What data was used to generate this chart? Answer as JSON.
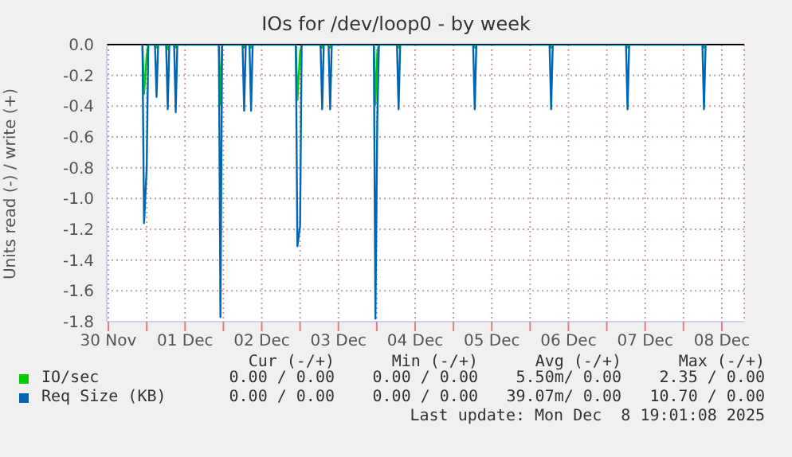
{
  "chart_data": {
    "type": "line",
    "title": "IOs for /dev/loop0 - by week",
    "ylabel": "Units read (-) / write (+)",
    "x": [
      "2025-11-30T22:40",
      "2025-11-30T23:10",
      "2025-12-01T00:00",
      "2025-12-01T00:30",
      "2025-12-01T02:35",
      "2025-12-01T03:05",
      "2025-12-01T03:35",
      "2025-12-01T06:05",
      "2025-12-01T06:35",
      "2025-12-01T07:05",
      "2025-12-01T08:35",
      "2025-12-01T09:05",
      "2025-12-01T09:35",
      "2025-12-01T22:35",
      "2025-12-01T23:05",
      "2025-12-01T23:35",
      "2025-12-02T06:00",
      "2025-12-02T06:30",
      "2025-12-02T07:00",
      "2025-12-02T08:10",
      "2025-12-02T08:40",
      "2025-12-02T09:10",
      "2025-12-02T22:40",
      "2025-12-02T23:10",
      "2025-12-03T00:00",
      "2025-12-03T00:30",
      "2025-12-03T06:25",
      "2025-12-03T06:55",
      "2025-12-03T07:25",
      "2025-12-03T08:55",
      "2025-12-03T09:25",
      "2025-12-03T09:55",
      "2025-12-03T23:05",
      "2025-12-03T23:35",
      "2025-12-04T00:10",
      "2025-12-04T00:40",
      "2025-12-04T06:20",
      "2025-12-04T06:50",
      "2025-12-04T07:20",
      "2025-12-05T06:10",
      "2025-12-05T06:40",
      "2025-12-05T07:10",
      "2025-12-06T06:05",
      "2025-12-06T06:35",
      "2025-12-06T07:05",
      "2025-12-07T06:00",
      "2025-12-07T06:30",
      "2025-12-07T07:00",
      "2025-12-08T05:55",
      "2025-12-08T06:25",
      "2025-12-08T06:55"
    ],
    "series": [
      {
        "name": "IO/sec",
        "color": "#00cc00",
        "values": [
          0,
          -0.32,
          -0.07,
          0,
          0,
          -0.02,
          0,
          0,
          -0.03,
          0,
          0,
          -0.02,
          0,
          0,
          -0.39,
          0,
          0,
          -0.02,
          0,
          0,
          -0.02,
          0,
          0,
          -0.36,
          -0.05,
          0,
          0,
          -0.02,
          0,
          0,
          -0.02,
          0,
          0,
          -0.39,
          -0.05,
          0,
          0,
          -0.02,
          0,
          0,
          -0.02,
          0,
          0,
          -0.02,
          0,
          0,
          -0.02,
          0,
          0,
          -0.02,
          0
        ]
      },
      {
        "name": "Req Size (KB)",
        "color": "#0066b3",
        "values": [
          0,
          -1.16,
          -0.8,
          0,
          0,
          -0.34,
          0,
          0,
          -0.42,
          0,
          0,
          -0.44,
          0,
          0,
          -1.77,
          0,
          0,
          -0.43,
          0,
          0,
          -0.43,
          0,
          0,
          -1.31,
          -1.18,
          0,
          0,
          -0.42,
          0,
          0,
          -0.42,
          0,
          0,
          -1.78,
          -0.5,
          0,
          0,
          -0.42,
          0,
          0,
          -0.42,
          0,
          0,
          -0.42,
          0,
          0,
          -0.42,
          0,
          0,
          -0.42,
          0
        ]
      }
    ],
    "xlim": [
      "2025-11-30T11:30",
      "2025-12-08T19:00"
    ],
    "xticks": [
      {
        "value": "2025-11-30T12:00",
        "label": "30 Nov"
      },
      {
        "value": "2025-12-01T00:00",
        "label": null
      },
      {
        "value": "2025-12-01T12:00",
        "label": "01 Dec"
      },
      {
        "value": "2025-12-02T00:00",
        "label": null
      },
      {
        "value": "2025-12-02T12:00",
        "label": "02 Dec"
      },
      {
        "value": "2025-12-03T00:00",
        "label": null
      },
      {
        "value": "2025-12-03T12:00",
        "label": "03 Dec"
      },
      {
        "value": "2025-12-04T00:00",
        "label": null
      },
      {
        "value": "2025-12-04T12:00",
        "label": "04 Dec"
      },
      {
        "value": "2025-12-05T00:00",
        "label": null
      },
      {
        "value": "2025-12-05T12:00",
        "label": "05 Dec"
      },
      {
        "value": "2025-12-06T00:00",
        "label": null
      },
      {
        "value": "2025-12-06T12:00",
        "label": "06 Dec"
      },
      {
        "value": "2025-12-07T00:00",
        "label": null
      },
      {
        "value": "2025-12-07T12:00",
        "label": "07 Dec"
      },
      {
        "value": "2025-12-08T00:00",
        "label": null
      },
      {
        "value": "2025-12-08T12:00",
        "label": "08 Dec"
      }
    ],
    "ylim": [
      -1.8,
      0
    ],
    "yticks": [
      -1.8,
      -1.6,
      -1.4,
      -1.2,
      {
        "value": -1,
        "label": "-1.0"
      },
      -0.8,
      -0.6,
      -0.4,
      -0.2,
      {
        "value": 0,
        "label": "0.0"
      }
    ],
    "ref_lines": [
      {
        "axis": "y",
        "value": 0,
        "color": "#000000"
      }
    ],
    "grid": true,
    "legend": "bottom",
    "marker": "none",
    "line_style": "solid",
    "annotations": [
      "Cur (-/+)",
      "Min (-/+)",
      "Avg (-/+)",
      "Max (-/+)",
      "0.00 / 0.00",
      "0.00 / 0.00",
      "5.50m/ 0.00",
      "2.35 / 0.00",
      "0.00 / 0.00",
      "0.00 / 0.00",
      "39.07m/ 0.00",
      "10.70 / 0.00",
      "Last update: Mon Dec  8 19:01:08 2025"
    ]
  }
}
